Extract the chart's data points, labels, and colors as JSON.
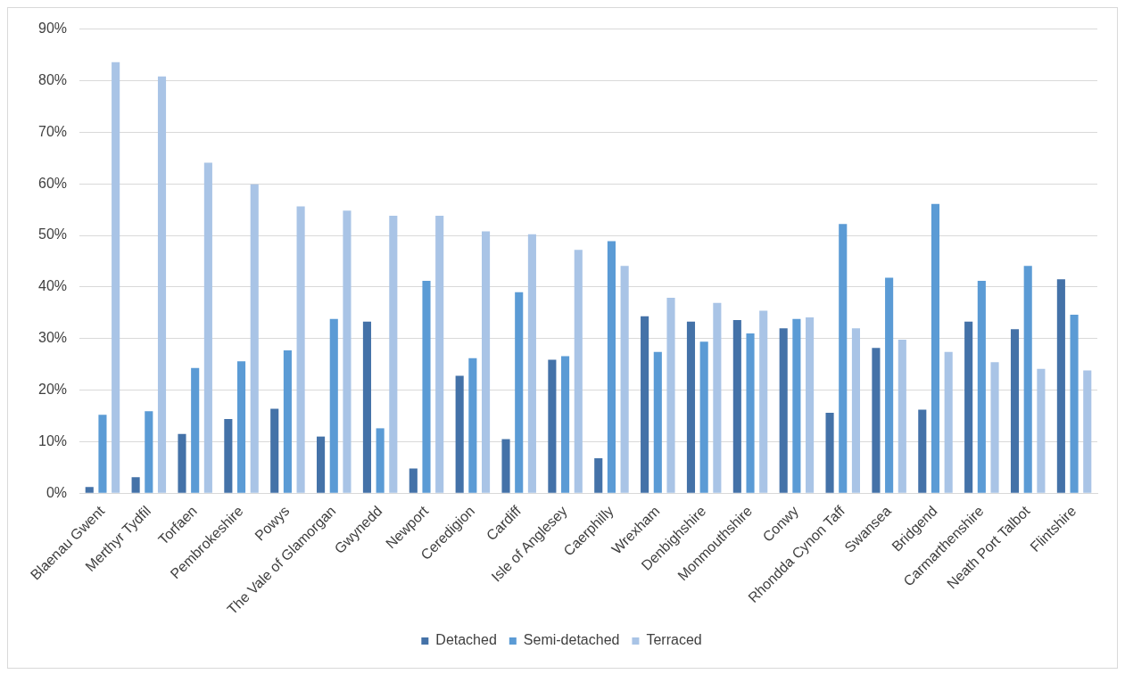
{
  "chart_data": {
    "type": "bar",
    "categories": [
      "Blaenau Gwent",
      "Merthyr Tydfil",
      "Torfaen",
      "Pembrokeshire",
      "Powys",
      "The Vale of Glamorgan",
      "Gwynedd",
      "Newport",
      "Ceredigion",
      "Cardiff",
      "Isle of Anglesey",
      "Caerphilly",
      "Wrexham",
      "Denbighshire",
      "Monmouthshire",
      "Conwy",
      "Rhondda Cynon Taff",
      "Swansea",
      "Bridgend",
      "Carmarthenshire",
      "Neath Port Talbot",
      "Flintshire"
    ],
    "series": [
      {
        "name": "Detached",
        "color": "#4472a8",
        "values": [
          1.2,
          3.1,
          11.5,
          14.4,
          16.4,
          11.0,
          33.3,
          4.8,
          22.8,
          10.5,
          25.9,
          6.8,
          34.3,
          33.3,
          33.6,
          32.0,
          15.6,
          28.2,
          16.2,
          33.3,
          31.8,
          41.5
        ]
      },
      {
        "name": "Semi-detached",
        "color": "#5b9bd5",
        "values": [
          15.2,
          15.9,
          24.3,
          25.6,
          27.7,
          33.8,
          12.6,
          41.2,
          26.2,
          39.0,
          26.6,
          48.9,
          27.4,
          29.4,
          31.0,
          33.8,
          52.2,
          41.8,
          56.1,
          41.2,
          44.1,
          34.6
        ]
      },
      {
        "name": "Terraced",
        "color": "#a9c4e6",
        "values": [
          83.6,
          80.8,
          64.1,
          59.9,
          55.6,
          54.8,
          53.8,
          53.8,
          50.8,
          50.2,
          47.2,
          44.1,
          37.9,
          36.9,
          35.4,
          34.1,
          32.0,
          29.8,
          27.4,
          25.4,
          24.1,
          23.8
        ]
      }
    ],
    "ylim": [
      0,
      90
    ],
    "yticks": [
      {
        "value": 0,
        "label": "0%"
      },
      {
        "value": 10,
        "label": "10%"
      },
      {
        "value": 20,
        "label": "20%"
      },
      {
        "value": 30,
        "label": "30%"
      },
      {
        "value": 40,
        "label": "40%"
      },
      {
        "value": 50,
        "label": "50%"
      },
      {
        "value": 60,
        "label": "60%"
      },
      {
        "value": 70,
        "label": "70%"
      },
      {
        "value": 80,
        "label": "80%"
      },
      {
        "value": 90,
        "label": "90%"
      }
    ],
    "grid": "y",
    "legend": "bottom"
  }
}
